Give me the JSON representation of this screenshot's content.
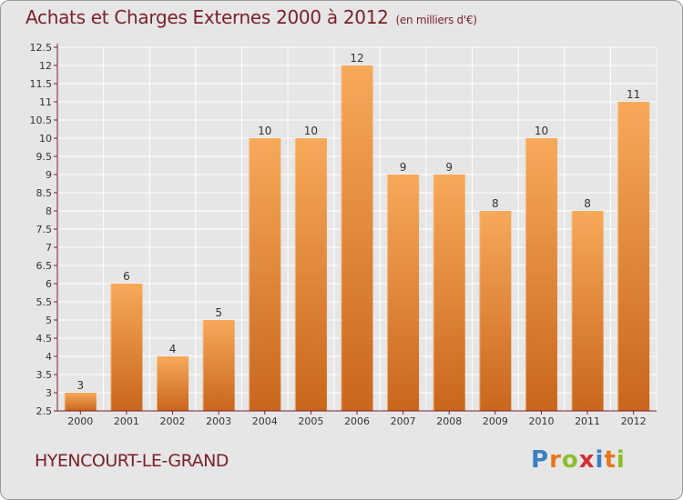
{
  "header": {
    "title": "Achats et Charges Externes 2000 à 2012",
    "unit": "(en milliers d'€)"
  },
  "footer": {
    "commune": "HYENCOURT-LE-GRAND",
    "logo_letters": [
      "P",
      "r",
      "o",
      "x",
      "i",
      "t",
      "i"
    ],
    "logo_colors": [
      "#3a7fc1",
      "#e8761c",
      "#8bbf2a",
      "#d12f2f",
      "#3a7fc1",
      "#e8761c",
      "#8bbf2a"
    ]
  },
  "colors": {
    "title": "#7a1f2b",
    "background": "#e6e6e6",
    "bar_top": "#f7a95a",
    "bar_bottom": "#c9661c",
    "axis": "#7a1f2b",
    "grid": "#ffffff"
  },
  "chart_data": {
    "type": "bar",
    "title": "Achats et Charges Externes 2000 à 2012",
    "subtitle": "(en milliers d'€)",
    "xlabel": "",
    "ylabel": "",
    "categories": [
      "2000",
      "2001",
      "2002",
      "2003",
      "2004",
      "2005",
      "2006",
      "2007",
      "2008",
      "2009",
      "2010",
      "2011",
      "2012"
    ],
    "values": [
      3,
      6,
      4,
      5,
      10,
      10,
      12,
      9,
      9,
      8,
      10,
      8,
      11
    ],
    "data_labels": [
      "3",
      "6",
      "4",
      "5",
      "10",
      "10",
      "12",
      "9",
      "9",
      "8",
      "10",
      "8",
      "11"
    ],
    "ylim": [
      2.5,
      12.5
    ],
    "yticks": [
      "2.5",
      "3",
      "3.5",
      "4",
      "4.5",
      "5",
      "5.5",
      "6",
      "6.5",
      "7",
      "7.5",
      "8",
      "8.5",
      "9",
      "9.5",
      "10",
      "10.5",
      "11",
      "11.5",
      "12",
      "12.5"
    ],
    "grid": true
  }
}
